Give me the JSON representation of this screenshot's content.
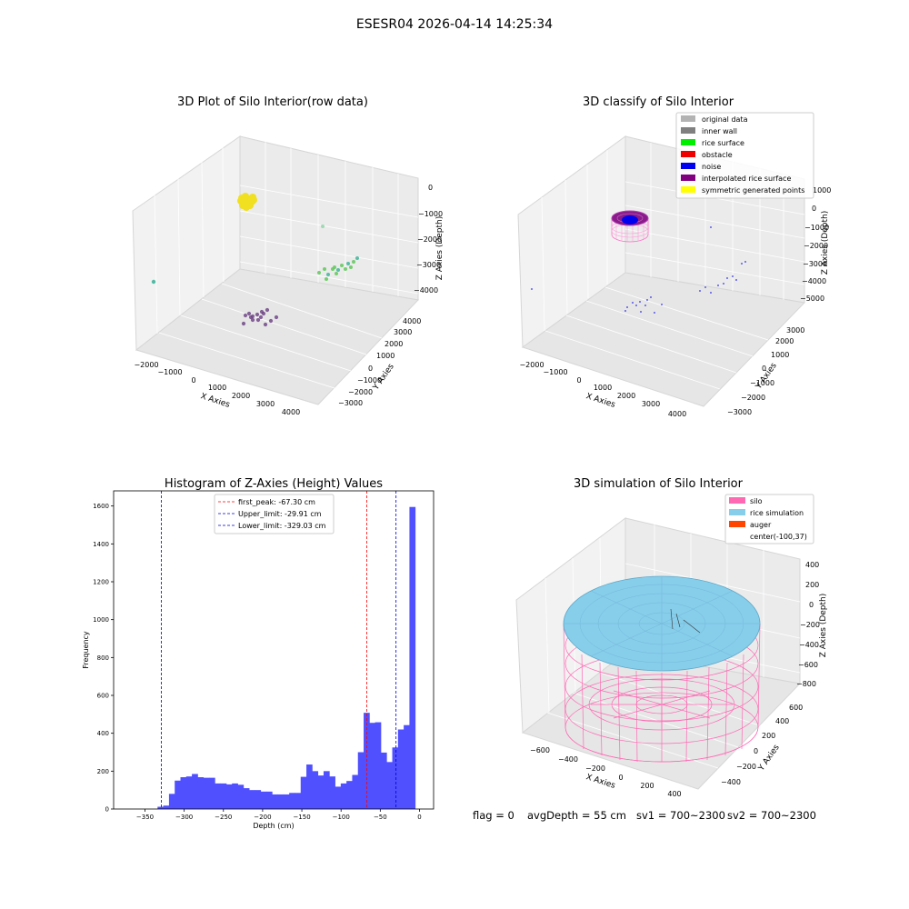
{
  "suptitle": "ESESR04 2026-04-14 14:25:34",
  "footer": {
    "flag": "flag = 0",
    "avg_depth": "avgDepth = 55 cm",
    "sv1": "sv1 = 700~2300",
    "sv2": "sv2 = 700~2300"
  },
  "chart_data": [
    {
      "type": "scatter3d",
      "title": "3D Plot of Silo Interior(row data)",
      "xlabel": "X Axies",
      "ylabel": "Y Axies",
      "zlabel": "Z Axies (Depth)",
      "x_ticks": [
        "−2000",
        "−1000",
        "0",
        "1000",
        "2000",
        "3000",
        "4000"
      ],
      "y_ticks": [
        "−3000",
        "−2000",
        "−1000",
        "0",
        "1000",
        "2000",
        "3000",
        "4000"
      ],
      "z_ticks": [
        "−4000",
        "−3000",
        "−2000",
        "−1000",
        "0"
      ],
      "colors": {
        "yellow": "#f0e020",
        "green": "#62c85a",
        "purple": "#6a3e82",
        "teal": "#3fb59a",
        "mint": "#8fd6a8"
      }
    },
    {
      "type": "scatter3d",
      "title": "3D classify of Silo Interior",
      "xlabel": "X Axies",
      "ylabel": "Y Axies",
      "zlabel": "Z Axies (Depth)",
      "x_ticks": [
        "−2000",
        "−1000",
        "0",
        "1000",
        "2000",
        "3000",
        "4000"
      ],
      "y_ticks": [
        "−3000",
        "−2000",
        "−1000",
        "0",
        "1000",
        "2000",
        "3000"
      ],
      "z_ticks": [
        "−5000",
        "−4000",
        "−3000",
        "−2000",
        "−1000",
        "0",
        "1000"
      ],
      "legend": [
        {
          "label": "original data",
          "color": "#b3b3b3"
        },
        {
          "label": "inner wall",
          "color": "#808080"
        },
        {
          "label": "rice surface",
          "color": "#00ee00"
        },
        {
          "label": "obstacle",
          "color": "#ee0000"
        },
        {
          "label": "noise",
          "color": "#0000ee"
        },
        {
          "label": "interpolated rice surface",
          "color": "#800080"
        },
        {
          "label": "symmetric generated points",
          "color": "#ffff00"
        }
      ],
      "legend_loc": "upper-right"
    },
    {
      "type": "bar",
      "title": "Histogram of Z-Axies (Height) Values",
      "xlabel": "Depth (cm)",
      "ylabel": "Frequency",
      "bar_color": "#5050ff",
      "bin_width": 7.3,
      "bins_start": -334,
      "values": [
        12,
        18,
        80,
        150,
        168,
        172,
        185,
        168,
        165,
        165,
        135,
        135,
        130,
        135,
        128,
        110,
        100,
        100,
        92,
        92,
        77,
        77,
        77,
        85,
        85,
        170,
        235,
        200,
        177,
        200,
        172,
        118,
        135,
        148,
        180,
        300,
        508,
        455,
        458,
        298,
        248,
        325,
        420,
        443,
        1595
      ],
      "xlim": [
        -390,
        18
      ],
      "ylim": [
        0,
        1680
      ],
      "x_ticks": [
        -350,
        -300,
        -250,
        -200,
        -150,
        -100,
        -50,
        0
      ],
      "y_ticks": [
        0,
        200,
        400,
        600,
        800,
        1000,
        1200,
        1400,
        1600
      ],
      "vlines": [
        {
          "x": -67.3,
          "color": "#ff0000",
          "label": "first_peak: -67.30 cm"
        },
        {
          "x": -29.91,
          "color": "#0000cc",
          "label": "Upper_limit: -29.91 cm"
        },
        {
          "x": -329.03,
          "color": "#0000cc",
          "label": "Lower_limit: -329.03 cm"
        }
      ],
      "legend_loc": "upper-center"
    },
    {
      "type": "surface3d",
      "title": "3D simulation of Silo Interior",
      "xlabel": "X Axies",
      "ylabel": "Y Axies",
      "zlabel": "Z Axies (Depth)",
      "x_ticks": [
        "−600",
        "−400",
        "−200",
        "0",
        "200",
        "400"
      ],
      "y_ticks": [
        "−400",
        "−200",
        "0",
        "200",
        "400",
        "600"
      ],
      "z_ticks": [
        "−800",
        "−600",
        "−400",
        "−200",
        "0",
        "200",
        "400"
      ],
      "legend": [
        {
          "label": "silo",
          "color": "#ff69b4"
        },
        {
          "label": "rice simulation",
          "color": "#87ceeb"
        },
        {
          "label": "auger",
          "color": "#ff4500"
        },
        {
          "label": "center(-100,37)",
          "color": ""
        }
      ],
      "legend_loc": "upper-right"
    }
  ]
}
